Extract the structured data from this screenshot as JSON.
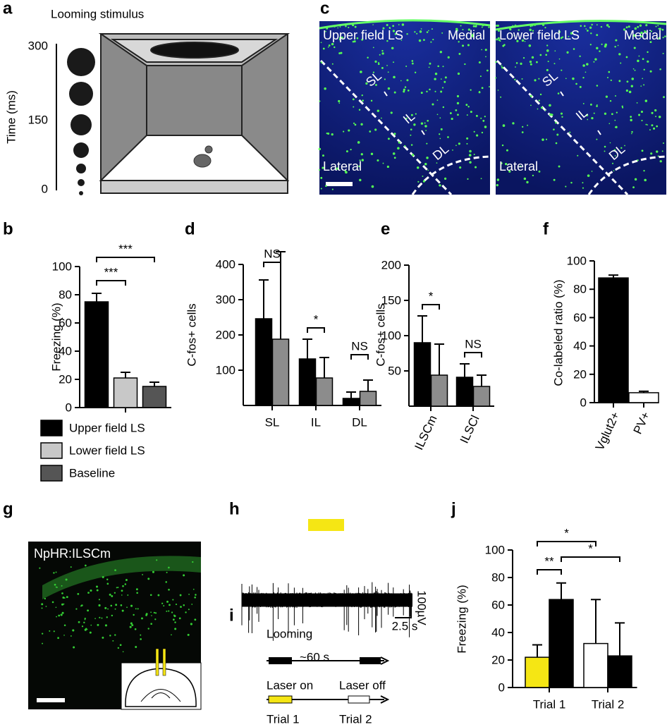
{
  "chart_data": [
    {
      "panel": "b",
      "type": "bar",
      "y_label": "Freezing (%)",
      "categories": [
        null
      ],
      "series": [
        {
          "name": "Upper field LS",
          "color": "#000000",
          "values": [
            75
          ],
          "errors": [
            6
          ]
        },
        {
          "name": "Lower field LS",
          "color": "#c8c8c8",
          "values": [
            21
          ],
          "errors": [
            4
          ]
        },
        {
          "name": "Baseline",
          "color": "#555555",
          "values": [
            15
          ],
          "errors": [
            3
          ]
        }
      ],
      "ylim": [
        0,
        100
      ],
      "yticks": [
        0,
        20,
        40,
        60,
        80,
        100
      ],
      "annotations": [
        "***",
        "***"
      ]
    },
    {
      "panel": "d",
      "type": "bar",
      "y_label": "C-fos+ cells",
      "categories": [
        "SL",
        "IL",
        "DL"
      ],
      "series": [
        {
          "color": "#000000",
          "values": [
            246,
            132,
            20
          ],
          "errors": [
            110,
            56,
            18
          ]
        },
        {
          "color": "#8c8c8c",
          "values": [
            188,
            78,
            40
          ],
          "errors": [
            248,
            58,
            32
          ]
        }
      ],
      "ylim": [
        0,
        400
      ],
      "yticks": [
        100,
        200,
        300,
        400
      ],
      "annotations": [
        "NS",
        "*",
        "NS"
      ]
    },
    {
      "panel": "e",
      "type": "bar",
      "y_label": "C-fos+ cells",
      "categories": [
        "ILSCm",
        "ILSCl"
      ],
      "series": [
        {
          "color": "#000000",
          "values": [
            90,
            41
          ],
          "errors": [
            38,
            19
          ]
        },
        {
          "color": "#8c8c8c",
          "values": [
            44,
            28
          ],
          "errors": [
            44,
            16
          ]
        }
      ],
      "ylim": [
        0,
        200
      ],
      "yticks": [
        50,
        100,
        150,
        200
      ],
      "annotations": [
        "*",
        "NS"
      ]
    },
    {
      "panel": "f",
      "type": "bar",
      "y_label": "Co-labeled ratio (%)",
      "categories": [
        "Vglut2+",
        "PV+"
      ],
      "series": [
        {
          "colors": [
            "#000000",
            "#ffffff"
          ],
          "values": [
            88,
            7
          ],
          "errors": [
            2,
            1
          ]
        }
      ],
      "ylim": [
        0,
        100
      ],
      "yticks": [
        0,
        20,
        40,
        60,
        80,
        100
      ]
    },
    {
      "panel": "j",
      "type": "bar",
      "y_label": "Freezing (%)",
      "categories": [
        "Trial 1",
        "Trial 2"
      ],
      "series": [
        {
          "colors": [
            "#f5e614",
            "#ffffff"
          ],
          "values": [
            22,
            32
          ],
          "errors": [
            9,
            32
          ]
        },
        {
          "color": "#000000",
          "values": [
            64,
            23
          ],
          "errors": [
            12,
            24
          ]
        }
      ],
      "ylim": [
        0,
        100
      ],
      "yticks": [
        0,
        20,
        40,
        60,
        80,
        100
      ],
      "annotations": [
        "**",
        "*",
        "*"
      ]
    }
  ],
  "panel_a": {
    "letter": "a",
    "title": "Looming stimulus",
    "axis_label": "Time (ms)",
    "ticks": [
      300,
      150,
      0
    ]
  },
  "panel_c": {
    "letter": "c",
    "images": [
      {
        "title": "Upper field LS",
        "medial": "Medial",
        "sl": "SL",
        "il": "IL",
        "dl": "DL",
        "lateral": "Lateral"
      },
      {
        "title": "Lower field LS",
        "medial": "Medial",
        "sl": "SL",
        "il": "IL",
        "dl": "DL",
        "lateral": "Lateral"
      }
    ]
  },
  "panel_g": {
    "letter": "g",
    "label": "NpHR:ILSCm"
  },
  "panel_h": {
    "letter": "h",
    "scale_y": "100µV",
    "scale_x": "2.5 s"
  },
  "panel_i": {
    "letter": "i",
    "looming": "Looming",
    "interval": "~60 s",
    "laser_on": "Laser on",
    "laser_off": "Laser off",
    "trial_1": "Trial 1",
    "trial_2": "Trial 2"
  }
}
